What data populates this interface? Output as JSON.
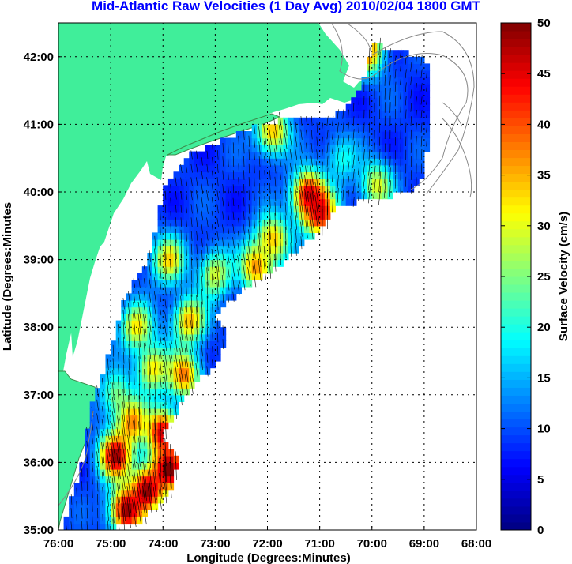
{
  "chart_data": {
    "type": "heatmap",
    "title": "Mid-Atlantic Raw Velocities (1 Day Avg) 2010/02/04 1800 GMT",
    "xlabel": "Longitude (Degrees:Minutes)",
    "ylabel": "Latitude (Degrees:Minutes",
    "x_ticks": [
      "76:00",
      "75:00",
      "74:00",
      "73:00",
      "72:00",
      "71:00",
      "70:00",
      "69:00",
      "68:00"
    ],
    "y_ticks": [
      "35:00",
      "36:00",
      "37:00",
      "38:00",
      "39:00",
      "40:00",
      "41:00",
      "42:00"
    ],
    "xlim": [
      -76,
      -68
    ],
    "ylim": [
      35,
      42.5
    ],
    "grid": true,
    "colorbar": {
      "label": "Surface Velocity (cm/s)",
      "ticks": [
        "0",
        "5",
        "10",
        "15",
        "20",
        "25",
        "30",
        "35",
        "40",
        "45",
        "50"
      ],
      "range": [
        0,
        50
      ]
    },
    "blobs": [
      {
        "lon": -71.2,
        "lat": 39.95,
        "value": 50
      },
      {
        "lon": -71.0,
        "lat": 39.7,
        "value": 45
      },
      {
        "lon": -71.9,
        "lat": 39.3,
        "value": 35
      },
      {
        "lon": -72.2,
        "lat": 38.9,
        "value": 38
      },
      {
        "lon": -73.9,
        "lat": 39.0,
        "value": 32
      },
      {
        "lon": -73.0,
        "lat": 38.8,
        "value": 30
      },
      {
        "lon": -73.5,
        "lat": 38.1,
        "value": 35
      },
      {
        "lon": -74.5,
        "lat": 38.0,
        "value": 32
      },
      {
        "lon": -74.2,
        "lat": 37.4,
        "value": 33
      },
      {
        "lon": -73.6,
        "lat": 37.3,
        "value": 38
      },
      {
        "lon": -74.9,
        "lat": 37.0,
        "value": 25
      },
      {
        "lon": -74.6,
        "lat": 36.6,
        "value": 36
      },
      {
        "lon": -74.0,
        "lat": 36.45,
        "value": 47
      },
      {
        "lon": -74.9,
        "lat": 36.1,
        "value": 48
      },
      {
        "lon": -74.3,
        "lat": 35.6,
        "value": 50
      },
      {
        "lon": -73.9,
        "lat": 35.9,
        "value": 50
      },
      {
        "lon": -74.7,
        "lat": 35.3,
        "value": 50
      },
      {
        "lon": -70.1,
        "lat": 42.1,
        "value": 40
      },
      {
        "lon": -71.9,
        "lat": 40.9,
        "value": 35
      },
      {
        "lon": -69.9,
        "lat": 40.1,
        "value": 30
      },
      {
        "lon": -70.6,
        "lat": 40.5,
        "value": 20
      }
    ],
    "background_value": 9
  }
}
